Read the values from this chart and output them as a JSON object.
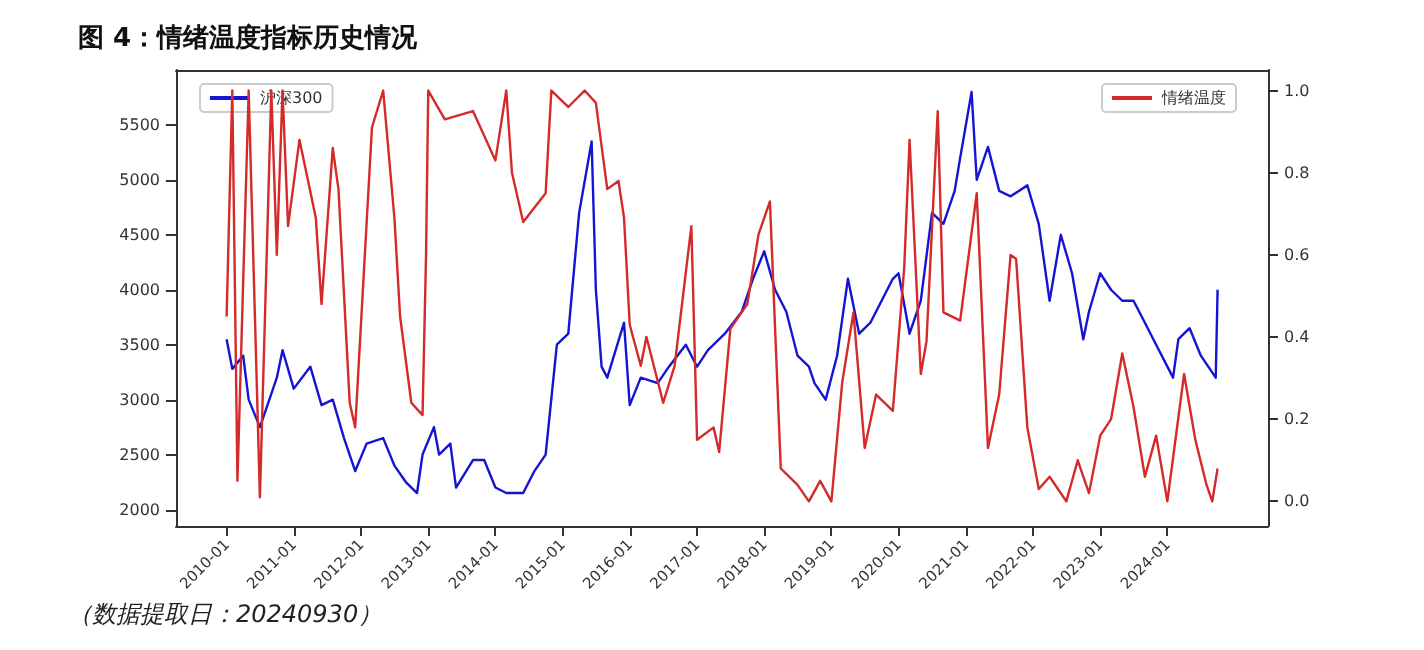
{
  "chart_data": {
    "type": "line",
    "title": "图 4：情绪温度指标历史情况",
    "annotations": [
      "（数据提取日：20240930）"
    ],
    "xlim": [
      "2009-04",
      "2025-07"
    ],
    "xticks": [
      "2010-01",
      "2011-01",
      "2012-01",
      "2013-01",
      "2014-01",
      "2015-01",
      "2016-01",
      "2017-01",
      "2018-01",
      "2019-01",
      "2020-01",
      "2021-01",
      "2022-01",
      "2023-01",
      "2024-01"
    ],
    "ylim": [
      1850,
      6000
    ],
    "yticks": [
      2000,
      2500,
      3000,
      3500,
      4000,
      4500,
      5000,
      5500
    ],
    "y2lim": [
      -0.06,
      1.05
    ],
    "y2ticks": [
      {
        "value": 0,
        "label": "0.0"
      },
      {
        "value": 0.2,
        "label": "0.2"
      },
      {
        "value": 0.4,
        "label": "0.4"
      },
      {
        "value": 0.6,
        "label": "0.6"
      },
      {
        "value": 0.8,
        "label": "0.8"
      },
      {
        "value": 1,
        "label": "1.0"
      }
    ],
    "legend": "top",
    "grid": false,
    "marker": "none",
    "line_style": "solid",
    "series": [
      {
        "name": "沪深300",
        "color": "#1414d2",
        "x": [
          "2010-01",
          "2010-02",
          "2010-04",
          "2010-05",
          "2010-07",
          "2010-08",
          "2010-10",
          "2010-11",
          "2011-01",
          "2011-04",
          "2011-06",
          "2011-08",
          "2011-10",
          "2011-12",
          "2012-02",
          "2012-05",
          "2012-07",
          "2012-09",
          "2012-11",
          "2012-12",
          "2013-02",
          "2013-03",
          "2013-05",
          "2013-06",
          "2013-09",
          "2013-11",
          "2014-01",
          "2014-03",
          "2014-06",
          "2014-08",
          "2014-10",
          "2014-12",
          "2015-02",
          "2015-04",
          "2015-06-08",
          "2015-07",
          "2015-08",
          "2015-09",
          "2015-12",
          "2016-01",
          "2016-03",
          "2016-06",
          "2016-08",
          "2016-11",
          "2017-01",
          "2017-03",
          "2017-06",
          "2017-09",
          "2017-11",
          "2018-01",
          "2018-03",
          "2018-05",
          "2018-07",
          "2018-09",
          "2018-10",
          "2018-12",
          "2019-02",
          "2019-04",
          "2019-06",
          "2019-08",
          "2019-10",
          "2019-12",
          "2020-01",
          "2020-03",
          "2020-05",
          "2020-07",
          "2020-09",
          "2020-11",
          "2020-12",
          "2021-02",
          "2021-03",
          "2021-05",
          "2021-07",
          "2021-09",
          "2021-12",
          "2022-02",
          "2022-04",
          "2022-06",
          "2022-08",
          "2022-10",
          "2022-11",
          "2023-01",
          "2023-03",
          "2023-05",
          "2023-07",
          "2023-09",
          "2023-11",
          "2024-02",
          "2024-03",
          "2024-05",
          "2024-07",
          "2024-09-20",
          "2024-09-30"
        ],
        "values": [
          3550,
          3280,
          3400,
          3000,
          2750,
          2900,
          3200,
          3450,
          3100,
          3300,
          2950,
          3000,
          2650,
          2350,
          2600,
          2650,
          2400,
          2250,
          2150,
          2500,
          2750,
          2500,
          2600,
          2200,
          2450,
          2450,
          2200,
          2150,
          2150,
          2350,
          2500,
          3500,
          3600,
          4700,
          5350,
          4000,
          3300,
          3200,
          3700,
          2950,
          3200,
          3150,
          3300,
          3500,
          3300,
          3450,
          3600,
          3800,
          4100,
          4350,
          4000,
          3800,
          3400,
          3300,
          3150,
          3000,
          3400,
          4100,
          3600,
          3700,
          3900,
          4100,
          4150,
          3600,
          3900,
          4700,
          4600,
          4900,
          5200,
          5800,
          5000,
          5300,
          4900,
          4850,
          4950,
          4600,
          3900,
          4500,
          4150,
          3550,
          3800,
          4150,
          4000,
          3900,
          3900,
          3700,
          3500,
          3200,
          3550,
          3650,
          3400,
          3200,
          4000
        ]
      },
      {
        "name": "情绪温度",
        "color": "#d42a2a",
        "axis": "y2",
        "x": [
          "2010-01",
          "2010-02",
          "2010-03",
          "2010-05",
          "2010-07",
          "2010-09",
          "2010-10",
          "2010-11",
          "2010-12",
          "2011-02",
          "2011-05",
          "2011-06",
          "2011-08",
          "2011-09",
          "2011-11",
          "2011-12",
          "2012-03",
          "2012-05",
          "2012-07",
          "2012-08",
          "2012-10",
          "2012-12",
          "2012-12-20",
          "2013-01",
          "2013-04",
          "2013-09",
          "2014-01",
          "2014-03",
          "2014-04",
          "2014-06",
          "2014-10",
          "2014-11",
          "2015-02",
          "2015-05",
          "2015-07",
          "2015-09",
          "2015-11",
          "2015-12",
          "2016-01",
          "2016-03",
          "2016-04",
          "2016-07",
          "2016-09",
          "2016-12",
          "2017-01",
          "2017-04",
          "2017-05",
          "2017-07",
          "2017-10",
          "2017-12",
          "2018-02",
          "2018-04",
          "2018-07",
          "2018-09",
          "2018-11",
          "2019-01",
          "2019-03",
          "2019-05",
          "2019-07",
          "2019-09",
          "2019-12",
          "2020-02",
          "2020-03",
          "2020-05",
          "2020-06",
          "2020-08",
          "2020-09",
          "2020-12",
          "2021-03",
          "2021-05",
          "2021-07",
          "2021-09",
          "2021-10",
          "2021-12",
          "2022-02",
          "2022-04",
          "2022-07",
          "2022-09",
          "2022-11",
          "2023-01",
          "2023-03",
          "2023-05",
          "2023-07",
          "2023-09",
          "2023-11",
          "2024-01",
          "2024-04",
          "2024-06",
          "2024-08",
          "2024-09",
          "2024-09-30"
        ],
        "values": [
          0.45,
          1.0,
          0.05,
          1.0,
          0.01,
          1.0,
          0.6,
          1.0,
          0.67,
          0.88,
          0.69,
          0.48,
          0.86,
          0.76,
          0.24,
          0.18,
          0.91,
          1.0,
          0.69,
          0.45,
          0.24,
          0.21,
          0.6,
          1.0,
          0.93,
          0.95,
          0.83,
          1.0,
          0.8,
          0.68,
          0.75,
          1.0,
          0.96,
          1.0,
          0.97,
          0.76,
          0.78,
          0.69,
          0.43,
          0.33,
          0.4,
          0.24,
          0.33,
          0.67,
          0.15,
          0.18,
          0.12,
          0.42,
          0.48,
          0.65,
          0.73,
          0.08,
          0.04,
          0.0,
          0.05,
          0.0,
          0.29,
          0.46,
          0.13,
          0.26,
          0.22,
          0.57,
          0.88,
          0.31,
          0.39,
          0.95,
          0.46,
          0.44,
          0.75,
          0.13,
          0.26,
          0.6,
          0.59,
          0.18,
          0.03,
          0.06,
          0.0,
          0.1,
          0.02,
          0.16,
          0.2,
          0.36,
          0.23,
          0.06,
          0.16,
          0.0,
          0.31,
          0.15,
          0.04,
          0.0,
          0.08
        ]
      }
    ]
  }
}
